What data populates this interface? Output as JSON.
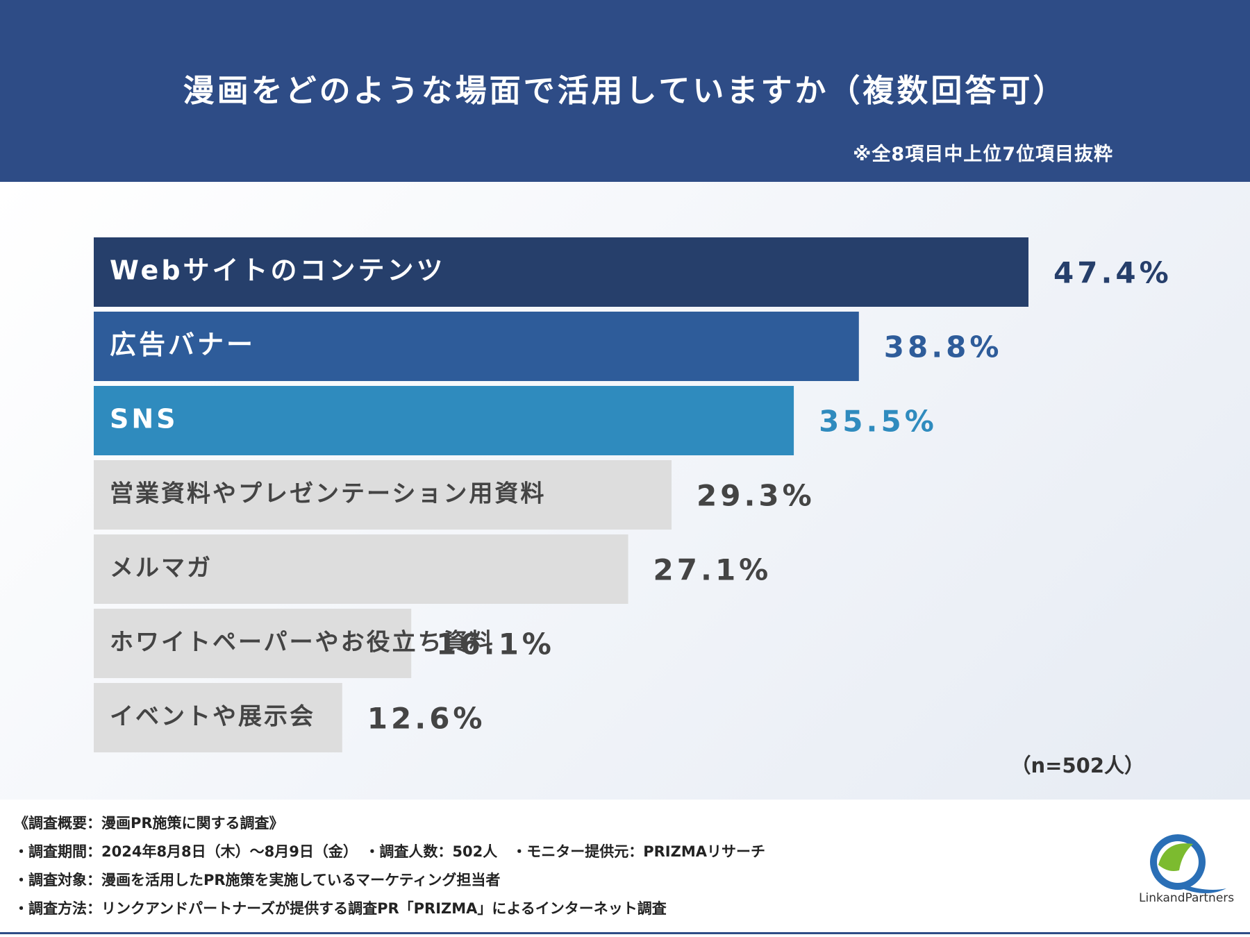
{
  "header": {
    "title": "漫画をどのような場面で活用していますか（複数回答可）",
    "note": "※全8項目中上位7位項目抜粋"
  },
  "colors": {
    "header_bg": "#2e4c86",
    "bar_1": "#263f6b",
    "bar_2": "#2e5c9a",
    "bar_3": "#2f8bbe",
    "bar_other": "#dddddd",
    "text_dark": "#444444"
  },
  "chart_data": {
    "type": "bar",
    "orientation": "horizontal",
    "title": "漫画をどのような場面で活用していますか（複数回答可）",
    "categories": [
      "Webサイトのコンテンツ",
      "広告バナー",
      "SNS",
      "営業資料やプレゼンテーション用資料",
      "メルマガ",
      "ホワイトペーパーやお役立ち資料",
      "イベントや展示会"
    ],
    "values": [
      47.4,
      38.8,
      35.5,
      29.3,
      27.1,
      16.1,
      12.6
    ],
    "value_labels": [
      "47.4%",
      "38.8%",
      "35.5%",
      "29.3%",
      "27.1%",
      "16.1%",
      "12.6%"
    ],
    "unit": "%",
    "xlim": [
      0,
      47.4
    ],
    "grid": false,
    "legend": "none"
  },
  "sample_size": "（n=502人）",
  "footer": {
    "lines": [
      "《調査概要：漫画PR施策に関する調査》",
      "・調査期間：2024年8月8日（木）〜8月9日（金）　・調査人数：502人　・モニター提供元：PRIZMAリサーチ",
      "・調査対象：漫画を活用したPR施策を実施しているマーケティング担当者",
      "・調査方法：リンクアンドパートナーズが提供する調査PR「PRIZMA」によるインターネット調査"
    ],
    "logo_text": "LinkandPartners"
  }
}
